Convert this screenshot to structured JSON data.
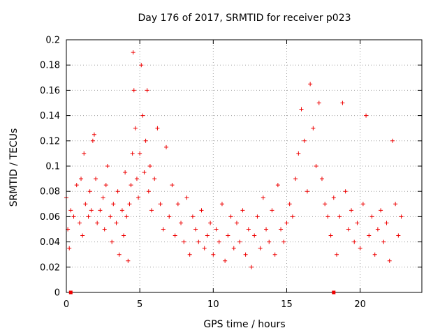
{
  "chart_data": {
    "type": "scatter",
    "title": "Day 176 of 2017, SRMTID for receiver p023",
    "xlabel": "GPS time / hours",
    "ylabel": "SRMTID / TECUs",
    "xlim": [
      0,
      24.2
    ],
    "ylim": [
      0,
      0.2
    ],
    "xticks": [
      0,
      5,
      10,
      15,
      20
    ],
    "xtick_labels": [
      "0",
      "5",
      "10",
      "15",
      "20"
    ],
    "yticks": [
      0,
      0.02,
      0.04,
      0.06,
      0.08,
      0.1,
      0.12,
      0.14,
      0.16,
      0.18,
      0.2
    ],
    "ytick_labels": [
      "0",
      "0.02",
      "0.04",
      "0.06",
      "0.08",
      "0.1",
      "0.12",
      "0.14",
      "0.16",
      "0.18",
      "0.2"
    ],
    "grid": true,
    "marker": "+",
    "color": "#ee0000",
    "series": [
      {
        "name": "SRMTID",
        "marker": "+",
        "points": [
          [
            0.0,
            0.075
          ],
          [
            0.1,
            0.05
          ],
          [
            0.2,
            0.035
          ],
          [
            0.3,
            0.065
          ],
          [
            0.5,
            0.06
          ],
          [
            0.7,
            0.085
          ],
          [
            0.9,
            0.055
          ],
          [
            1.0,
            0.09
          ],
          [
            1.1,
            0.045
          ],
          [
            1.2,
            0.11
          ],
          [
            1.3,
            0.07
          ],
          [
            1.5,
            0.06
          ],
          [
            1.6,
            0.08
          ],
          [
            1.7,
            0.065
          ],
          [
            1.8,
            0.12
          ],
          [
            1.9,
            0.125
          ],
          [
            2.0,
            0.09
          ],
          [
            2.1,
            0.055
          ],
          [
            2.3,
            0.065
          ],
          [
            2.5,
            0.075
          ],
          [
            2.6,
            0.05
          ],
          [
            2.7,
            0.085
          ],
          [
            2.8,
            0.1
          ],
          [
            3.0,
            0.06
          ],
          [
            3.1,
            0.04
          ],
          [
            3.2,
            0.07
          ],
          [
            3.4,
            0.055
          ],
          [
            3.5,
            0.08
          ],
          [
            3.6,
            0.03
          ],
          [
            3.8,
            0.065
          ],
          [
            3.9,
            0.045
          ],
          [
            4.0,
            0.095
          ],
          [
            4.1,
            0.06
          ],
          [
            4.2,
            0.025
          ],
          [
            4.3,
            0.07
          ],
          [
            4.4,
            0.085
          ],
          [
            4.5,
            0.11
          ],
          [
            4.55,
            0.19
          ],
          [
            4.6,
            0.16
          ],
          [
            4.7,
            0.13
          ],
          [
            4.8,
            0.09
          ],
          [
            4.9,
            0.075
          ],
          [
            5.0,
            0.11
          ],
          [
            5.1,
            0.18
          ],
          [
            5.2,
            0.14
          ],
          [
            5.3,
            0.095
          ],
          [
            5.4,
            0.12
          ],
          [
            5.5,
            0.16
          ],
          [
            5.6,
            0.08
          ],
          [
            5.7,
            0.1
          ],
          [
            5.8,
            0.065
          ],
          [
            6.0,
            0.09
          ],
          [
            6.2,
            0.13
          ],
          [
            6.4,
            0.07
          ],
          [
            6.6,
            0.05
          ],
          [
            6.8,
            0.115
          ],
          [
            7.0,
            0.06
          ],
          [
            7.2,
            0.085
          ],
          [
            7.4,
            0.045
          ],
          [
            7.6,
            0.07
          ],
          [
            7.8,
            0.055
          ],
          [
            8.0,
            0.04
          ],
          [
            8.2,
            0.075
          ],
          [
            8.4,
            0.03
          ],
          [
            8.6,
            0.06
          ],
          [
            8.8,
            0.05
          ],
          [
            9.0,
            0.04
          ],
          [
            9.2,
            0.065
          ],
          [
            9.4,
            0.035
          ],
          [
            9.6,
            0.045
          ],
          [
            9.8,
            0.055
          ],
          [
            10.0,
            0.03
          ],
          [
            10.2,
            0.05
          ],
          [
            10.4,
            0.04
          ],
          [
            10.6,
            0.07
          ],
          [
            10.8,
            0.025
          ],
          [
            11.0,
            0.045
          ],
          [
            11.2,
            0.06
          ],
          [
            11.4,
            0.035
          ],
          [
            11.6,
            0.055
          ],
          [
            11.8,
            0.04
          ],
          [
            12.0,
            0.065
          ],
          [
            12.2,
            0.03
          ],
          [
            12.4,
            0.05
          ],
          [
            12.6,
            0.02
          ],
          [
            12.8,
            0.045
          ],
          [
            13.0,
            0.06
          ],
          [
            13.2,
            0.035
          ],
          [
            13.4,
            0.075
          ],
          [
            13.6,
            0.05
          ],
          [
            13.8,
            0.04
          ],
          [
            14.0,
            0.065
          ],
          [
            14.2,
            0.03
          ],
          [
            14.4,
            0.085
          ],
          [
            14.6,
            0.05
          ],
          [
            14.8,
            0.04
          ],
          [
            15.0,
            0.055
          ],
          [
            15.2,
            0.07
          ],
          [
            15.4,
            0.06
          ],
          [
            15.6,
            0.09
          ],
          [
            15.8,
            0.11
          ],
          [
            16.0,
            0.145
          ],
          [
            16.2,
            0.12
          ],
          [
            16.4,
            0.08
          ],
          [
            16.6,
            0.165
          ],
          [
            16.8,
            0.13
          ],
          [
            17.0,
            0.1
          ],
          [
            17.2,
            0.15
          ],
          [
            17.4,
            0.09
          ],
          [
            17.6,
            0.07
          ],
          [
            17.8,
            0.06
          ],
          [
            18.0,
            0.045
          ],
          [
            18.2,
            0.075
          ],
          [
            18.4,
            0.03
          ],
          [
            18.6,
            0.06
          ],
          [
            18.8,
            0.15
          ],
          [
            19.0,
            0.08
          ],
          [
            19.2,
            0.05
          ],
          [
            19.4,
            0.065
          ],
          [
            19.6,
            0.04
          ],
          [
            19.8,
            0.055
          ],
          [
            20.0,
            0.035
          ],
          [
            20.2,
            0.07
          ],
          [
            20.4,
            0.14
          ],
          [
            20.6,
            0.045
          ],
          [
            20.8,
            0.06
          ],
          [
            21.0,
            0.03
          ],
          [
            21.2,
            0.05
          ],
          [
            21.4,
            0.065
          ],
          [
            21.6,
            0.04
          ],
          [
            21.8,
            0.055
          ],
          [
            22.0,
            0.025
          ],
          [
            22.2,
            0.12
          ],
          [
            22.4,
            0.07
          ],
          [
            22.6,
            0.045
          ],
          [
            22.8,
            0.06
          ]
        ]
      }
    ],
    "markers_on_axis": [
      {
        "x": 0.3,
        "y": 0.0
      },
      {
        "x": 18.2,
        "y": 0.0
      }
    ]
  }
}
